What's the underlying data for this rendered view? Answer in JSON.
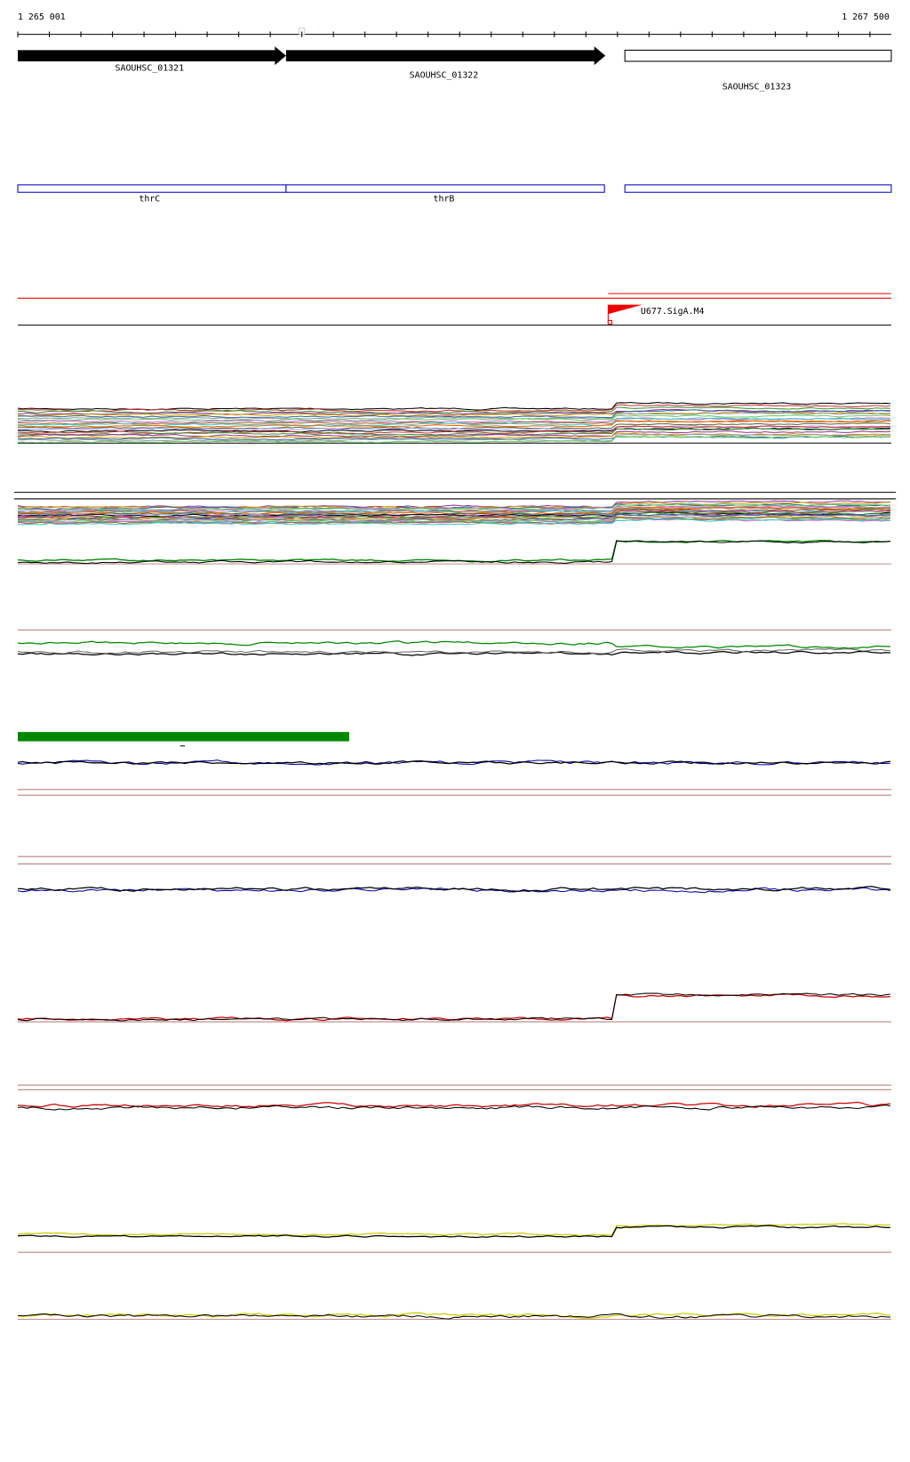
{
  "ruler": {
    "start": "1 265 001",
    "end": "1 267 500"
  },
  "genes": [
    {
      "label": "SAOUHSC_01321"
    },
    {
      "label": "SAOUHSC_01322"
    },
    {
      "label": "SAOUHSC_01323"
    }
  ],
  "features": [
    {
      "label": "thrC"
    },
    {
      "label": "thrB"
    }
  ],
  "promoter": {
    "label": "U677.SigA.M4"
  }
}
